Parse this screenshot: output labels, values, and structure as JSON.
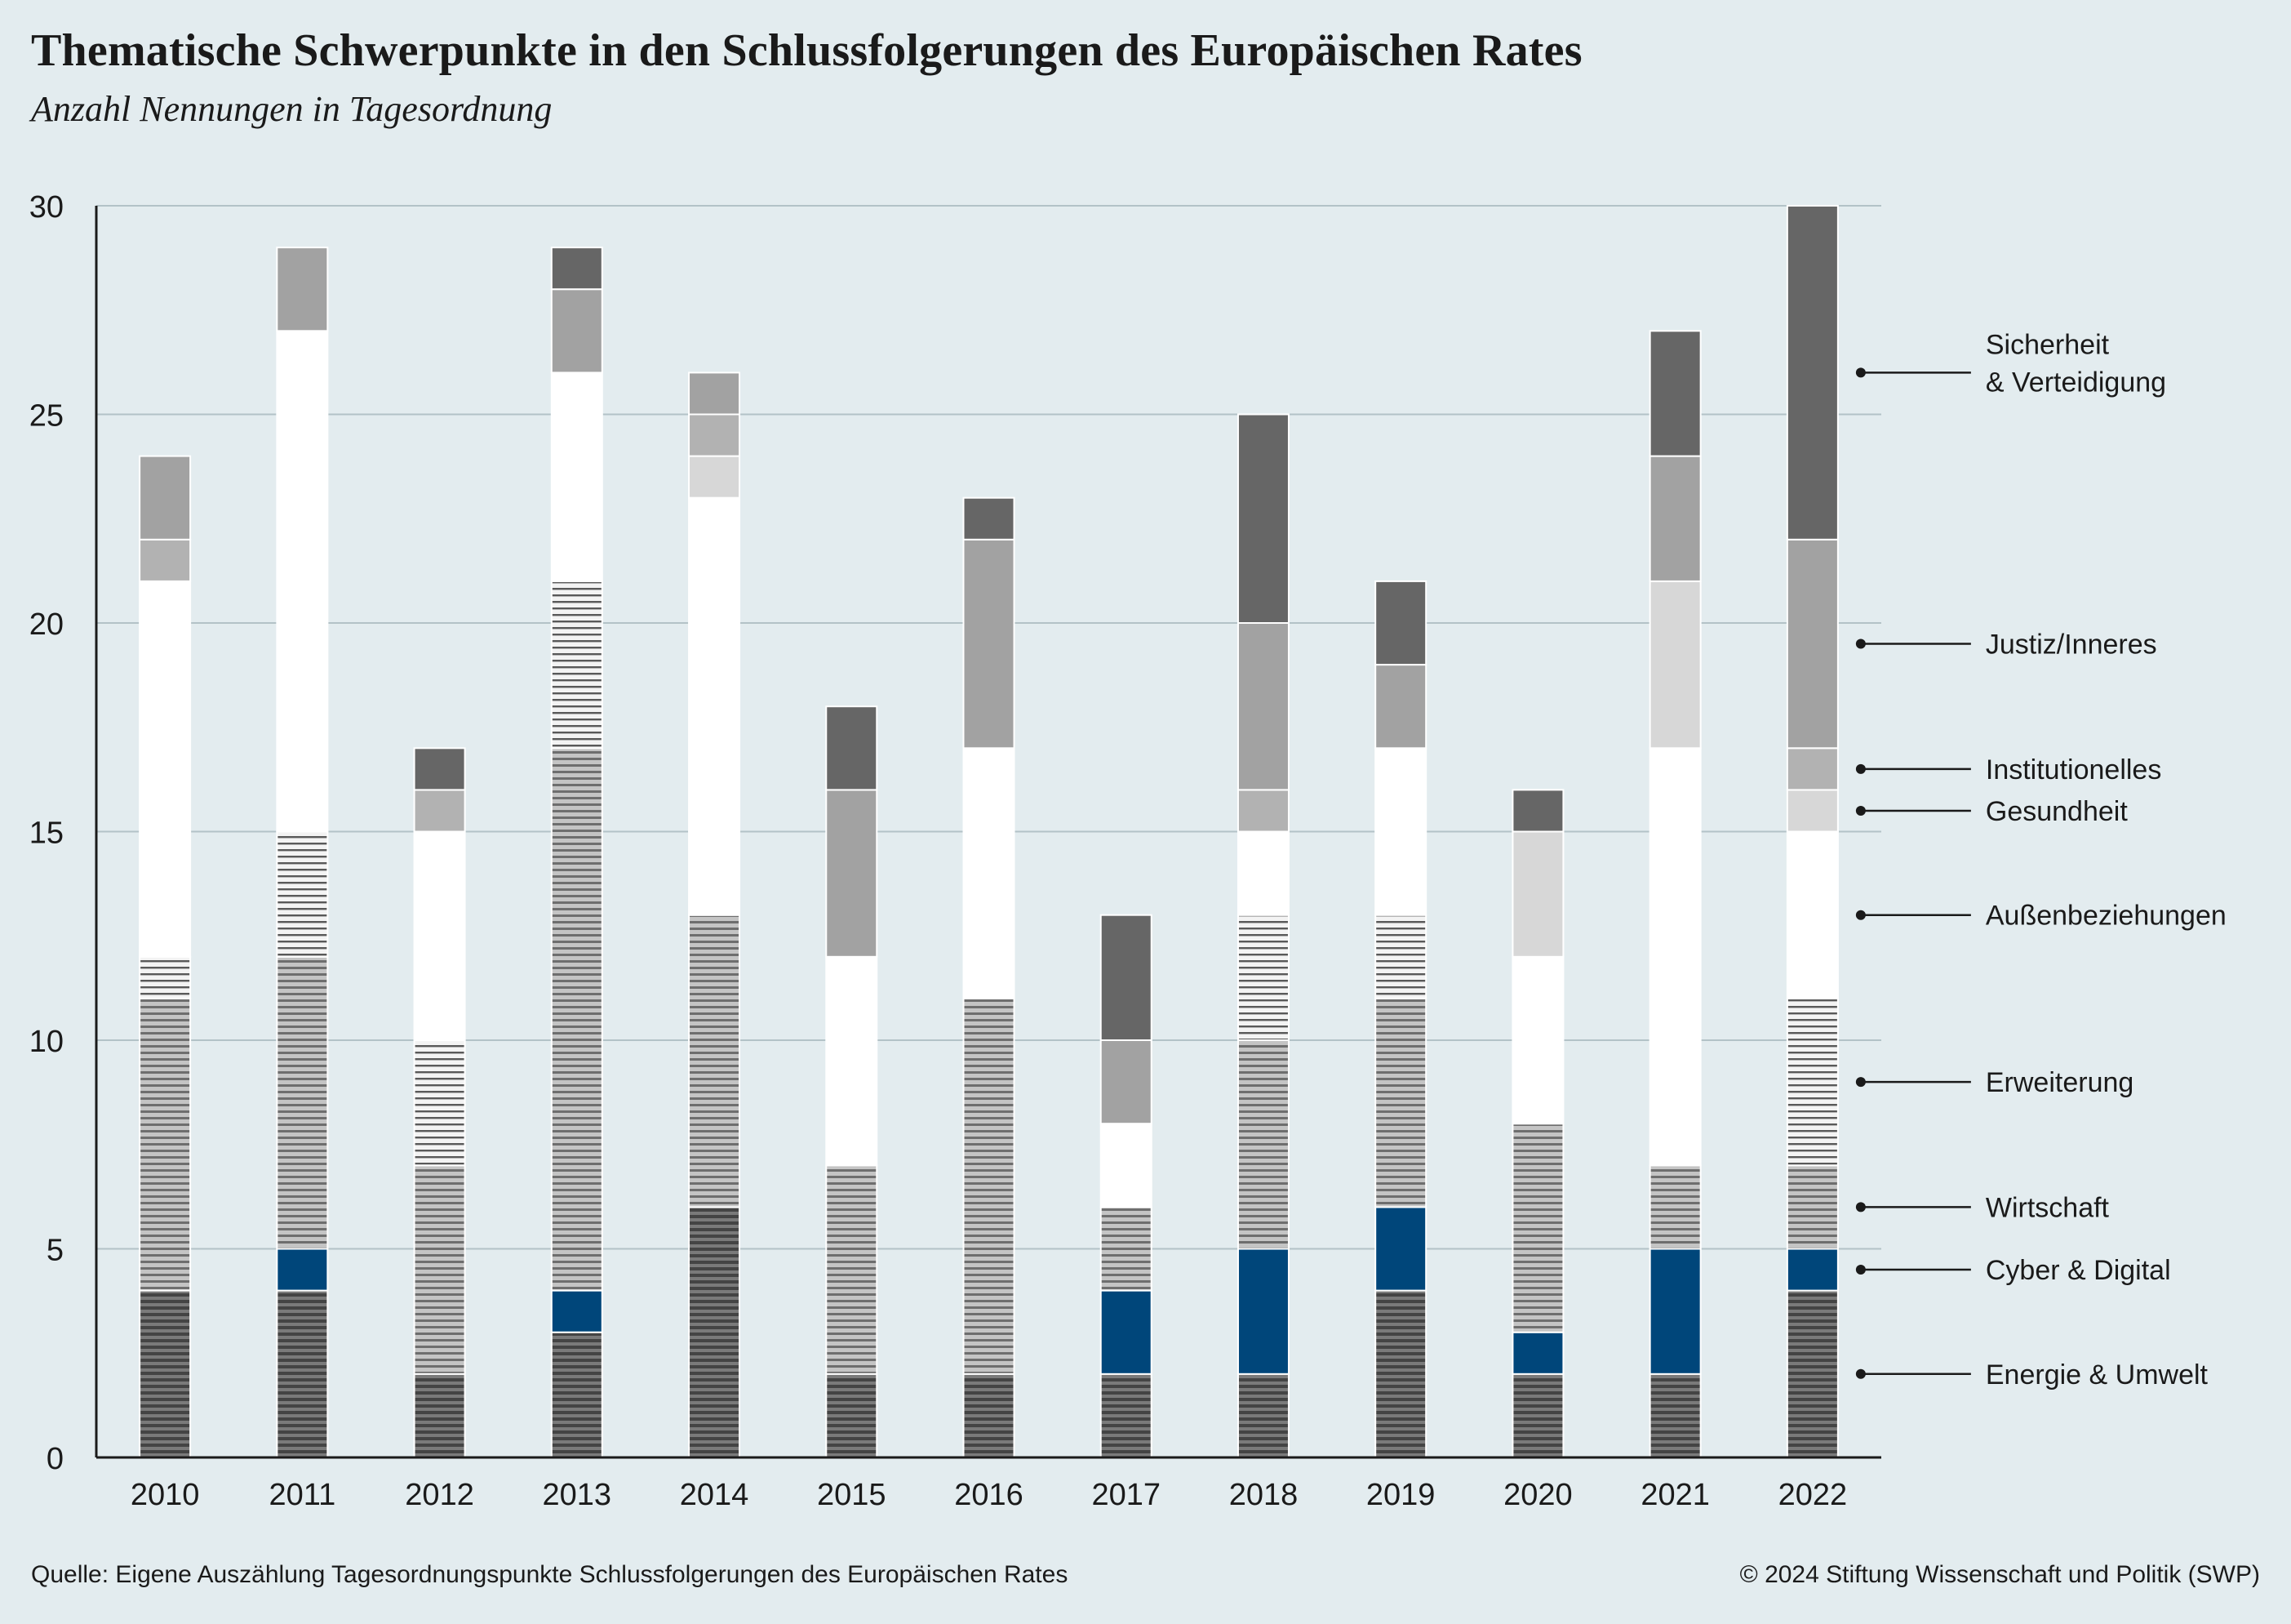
{
  "header": {
    "title": "Thematische Schwerpunkte in den Schlussfolgerungen des Europäischen Rates",
    "subtitle": "Anzahl Nennungen in Tagesordnung"
  },
  "footer": {
    "source": "Quelle: Eigene Auszählung Tagesordnungspunkte Schlussfolgerungen des Europäischen Rates",
    "copyright": "© 2024 Stiftung Wissenschaft und Politik (SWP)"
  },
  "chart_data": {
    "type": "bar",
    "stacked": true,
    "title": "Thematische Schwerpunkte in den Schlussfolgerungen des Europäischen Rates",
    "subtitle": "Anzahl Nennungen in Tagesordnung",
    "xlabel": "",
    "ylabel": "",
    "ylim": [
      0,
      30
    ],
    "yticks": [
      0,
      5,
      10,
      15,
      20,
      25,
      30
    ],
    "grid": true,
    "legend_position": "right",
    "categories": [
      "2010",
      "2011",
      "2012",
      "2013",
      "2014",
      "2015",
      "2016",
      "2017",
      "2018",
      "2019",
      "2020",
      "2021",
      "2022"
    ],
    "series": [
      {
        "name": "Energie & Umwelt",
        "color": "#575757",
        "pattern": "stripes-dark",
        "values": [
          4,
          4,
          2,
          3,
          6,
          2,
          2,
          2,
          2,
          4,
          2,
          2,
          4
        ]
      },
      {
        "name": "Cyber & Digital",
        "color": "#00467a",
        "pattern": "solid",
        "values": [
          0,
          1,
          0,
          1,
          0,
          0,
          0,
          2,
          3,
          2,
          1,
          3,
          1
        ]
      },
      {
        "name": "Wirtschaft",
        "color": "#9b9b9b",
        "pattern": "stripes-mid",
        "values": [
          7,
          7,
          5,
          13,
          7,
          5,
          9,
          2,
          5,
          5,
          5,
          2,
          2
        ]
      },
      {
        "name": "Erweiterung",
        "color": "#d4d4d4",
        "pattern": "stripes-light",
        "values": [
          1,
          3,
          3,
          4,
          0,
          0,
          0,
          0,
          3,
          2,
          0,
          0,
          4
        ]
      },
      {
        "name": "Außenbeziehungen",
        "color": "#ffffff",
        "pattern": "solid",
        "values": [
          9,
          12,
          5,
          5,
          10,
          5,
          6,
          2,
          2,
          4,
          4,
          10,
          4
        ]
      },
      {
        "name": "Gesundheit",
        "color": "#d7d7d7",
        "pattern": "solid",
        "values": [
          0,
          0,
          0,
          0,
          1,
          0,
          0,
          0,
          0,
          0,
          3,
          4,
          1
        ]
      },
      {
        "name": "Institutionelles",
        "color": "#b2b2b2",
        "pattern": "solid",
        "values": [
          1,
          0,
          1,
          0,
          1,
          0,
          0,
          0,
          1,
          0,
          0,
          0,
          1
        ]
      },
      {
        "name": "Justiz/Inneres",
        "color": "#a2a2a2",
        "pattern": "solid",
        "values": [
          2,
          2,
          0,
          2,
          1,
          4,
          5,
          2,
          4,
          2,
          0,
          3,
          5
        ]
      },
      {
        "name": "Sicherheit & Verteidigung",
        "color": "#666666",
        "pattern": "solid",
        "values": [
          0,
          0,
          1,
          1,
          0,
          2,
          1,
          3,
          5,
          2,
          1,
          3,
          8
        ]
      }
    ],
    "legend_labels": [
      {
        "series": "Sicherheit & Verteidigung",
        "lines": [
          "Sicherheit",
          "& Verteidigung"
        ]
      },
      {
        "series": "Justiz/Inneres",
        "lines": [
          "Justiz/Inneres"
        ]
      },
      {
        "series": "Institutionelles",
        "lines": [
          "Institutionelles"
        ]
      },
      {
        "series": "Gesundheit",
        "lines": [
          "Gesundheit"
        ]
      },
      {
        "series": "Außenbeziehungen",
        "lines": [
          "Außenbeziehungen"
        ]
      },
      {
        "series": "Erweiterung",
        "lines": [
          "Erweiterung"
        ]
      },
      {
        "series": "Wirtschaft",
        "lines": [
          "Wirtschaft"
        ]
      },
      {
        "series": "Cyber & Digital",
        "lines": [
          "Cyber & Digital"
        ]
      },
      {
        "series": "Energie & Umwelt",
        "lines": [
          "Energie & Umwelt"
        ]
      }
    ]
  }
}
